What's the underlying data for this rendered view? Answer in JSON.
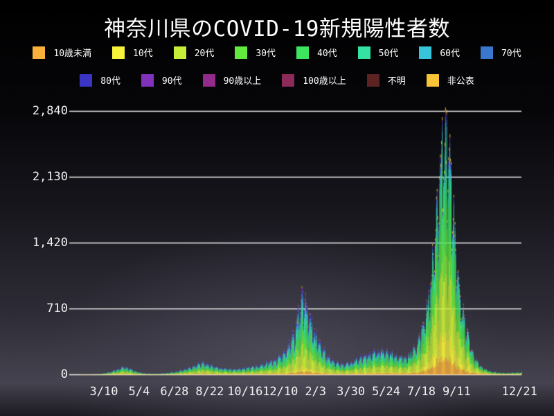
{
  "title": "神奈川県のCOVID-19新規陽性者数",
  "colors": {
    "text": "#ffffff",
    "grid": "#f2f2f2",
    "background_center": "#4a4854",
    "background_edge": "#000000"
  },
  "legend": {
    "rows": [
      [
        {
          "label": "10歳未満",
          "color": "#f9b13c"
        },
        {
          "label": "10代",
          "color": "#f6f13b"
        },
        {
          "label": "20代",
          "color": "#c6ee38"
        },
        {
          "label": "30代",
          "color": "#63e83e"
        },
        {
          "label": "40代",
          "color": "#3ce45f"
        },
        {
          "label": "50代",
          "color": "#34e3a2"
        },
        {
          "label": "60代",
          "color": "#38c5da"
        },
        {
          "label": "70代",
          "color": "#3a76ce"
        }
      ],
      [
        {
          "label": "80代",
          "color": "#3b35c4"
        },
        {
          "label": "90代",
          "color": "#8032bd"
        },
        {
          "label": "90歳以上",
          "color": "#922b8c"
        },
        {
          "label": "100歳以上",
          "color": "#8c2a58"
        },
        {
          "label": "不明",
          "color": "#5c2322"
        },
        {
          "label": "非公表",
          "color": "#f9c435"
        }
      ]
    ]
  },
  "chart_data": {
    "type": "bar",
    "stacked": true,
    "title": "神奈川県のCOVID-19新規陽性者数",
    "xlabel": "",
    "ylabel": "",
    "ylim": [
      0,
      2878
    ],
    "grid": true,
    "legend_position": "top",
    "y_ticks": [
      {
        "label": "0",
        "value": 0
      },
      {
        "label": "710",
        "value": 710
      },
      {
        "label": "1,420",
        "value": 1420
      },
      {
        "label": "2,130",
        "value": 2130
      },
      {
        "label": "2,840",
        "value": 2840
      }
    ],
    "y_max_tick": 2840,
    "days": 705,
    "x_ticks": [
      {
        "label": "3/10",
        "day": 54
      },
      {
        "label": "5/4",
        "day": 109
      },
      {
        "label": "6/28",
        "day": 164
      },
      {
        "label": "8/22",
        "day": 219
      },
      {
        "label": "10/16",
        "day": 274
      },
      {
        "label": "12/10",
        "day": 329
      },
      {
        "label": "2/3",
        "day": 384
      },
      {
        "label": "3/30",
        "day": 439
      },
      {
        "label": "5/24",
        "day": 494
      },
      {
        "label": "7/18",
        "day": 549
      },
      {
        "label": "9/11",
        "day": 604
      },
      {
        "label": "12/21",
        "day": 702
      }
    ],
    "groups": [
      {
        "label": "10歳未満",
        "color": "#f9b13c"
      },
      {
        "label": "10代",
        "color": "#f6f13b"
      },
      {
        "label": "20代",
        "color": "#c6ee38"
      },
      {
        "label": "30代",
        "color": "#63e83e"
      },
      {
        "label": "40代",
        "color": "#3ce45f"
      },
      {
        "label": "50代",
        "color": "#34e3a2"
      },
      {
        "label": "60代",
        "color": "#38c5da"
      },
      {
        "label": "70代",
        "color": "#3a76ce"
      },
      {
        "label": "80代",
        "color": "#3b35c4"
      },
      {
        "label": "90代",
        "color": "#8032bd"
      },
      {
        "label": "90歳以上",
        "color": "#922b8c"
      },
      {
        "label": "100歳以上",
        "color": "#8c2a58"
      },
      {
        "label": "不明",
        "color": "#5c2322"
      },
      {
        "label": "非公表",
        "color": "#f9c435"
      }
    ],
    "envelope_day_value": [
      [
        0,
        0
      ],
      [
        30,
        1
      ],
      [
        45,
        4
      ],
      [
        54,
        12
      ],
      [
        65,
        30
      ],
      [
        75,
        55
      ],
      [
        85,
        85
      ],
      [
        92,
        75
      ],
      [
        100,
        45
      ],
      [
        110,
        20
      ],
      [
        120,
        10
      ],
      [
        135,
        7
      ],
      [
        150,
        14
      ],
      [
        165,
        28
      ],
      [
        180,
        55
      ],
      [
        192,
        85
      ],
      [
        200,
        115
      ],
      [
        208,
        130
      ],
      [
        216,
        105
      ],
      [
        228,
        80
      ],
      [
        240,
        65
      ],
      [
        252,
        58
      ],
      [
        264,
        62
      ],
      [
        276,
        70
      ],
      [
        288,
        85
      ],
      [
        300,
        105
      ],
      [
        312,
        135
      ],
      [
        324,
        170
      ],
      [
        336,
        240
      ],
      [
        344,
        330
      ],
      [
        350,
        420
      ],
      [
        356,
        600
      ],
      [
        360,
        760
      ],
      [
        364,
        820
      ],
      [
        368,
        780
      ],
      [
        372,
        680
      ],
      [
        378,
        550
      ],
      [
        384,
        420
      ],
      [
        390,
        330
      ],
      [
        398,
        240
      ],
      [
        406,
        170
      ],
      [
        414,
        130
      ],
      [
        424,
        110
      ],
      [
        434,
        125
      ],
      [
        444,
        150
      ],
      [
        454,
        185
      ],
      [
        464,
        215
      ],
      [
        474,
        245
      ],
      [
        484,
        260
      ],
      [
        494,
        250
      ],
      [
        504,
        215
      ],
      [
        514,
        185
      ],
      [
        524,
        170
      ],
      [
        534,
        230
      ],
      [
        540,
        300
      ],
      [
        546,
        400
      ],
      [
        552,
        550
      ],
      [
        558,
        750
      ],
      [
        564,
        1050
      ],
      [
        570,
        1450
      ],
      [
        576,
        1950
      ],
      [
        581,
        2350
      ],
      [
        585,
        2550
      ],
      [
        589,
        2450
      ],
      [
        593,
        2150
      ],
      [
        597,
        1800
      ],
      [
        601,
        1450
      ],
      [
        605,
        1150
      ],
      [
        610,
        800
      ],
      [
        615,
        600
      ],
      [
        621,
        400
      ],
      [
        627,
        250
      ],
      [
        633,
        160
      ],
      [
        640,
        95
      ],
      [
        648,
        55
      ],
      [
        656,
        32
      ],
      [
        666,
        20
      ],
      [
        678,
        14
      ],
      [
        690,
        16
      ],
      [
        705,
        22
      ]
    ],
    "composition": {
      "blend_start": 470,
      "blend_span": 100,
      "profiles": {
        "early": {
          "10歳未満": 0.035,
          "10代": 0.065,
          "20代": 0.24,
          "30代": 0.16,
          "40代": 0.15,
          "50代": 0.13,
          "60代": 0.08,
          "70代": 0.06,
          "80代": 0.045,
          "90代": 0.02,
          "90歳以上": 0.004,
          "100歳以上": 0.0005,
          "不明": 0.003,
          "非公表": 0.0075
        },
        "delta": {
          "10歳未満": 0.07,
          "10代": 0.11,
          "20代": 0.27,
          "30代": 0.18,
          "40代": 0.16,
          "50代": 0.11,
          "60代": 0.045,
          "70代": 0.02,
          "80代": 0.012,
          "90代": 0.005,
          "90歳以上": 0.002,
          "100歳以上": 0.0005,
          "不明": 0.0015,
          "非公表": 0.014
        }
      }
    },
    "weekly_pattern": [
      1.04,
      0.74,
      0.8,
      0.98,
      1.06,
      1.1,
      1.07
    ],
    "noise": {
      "seed": 20211221,
      "amplitude": 0.14
    }
  }
}
